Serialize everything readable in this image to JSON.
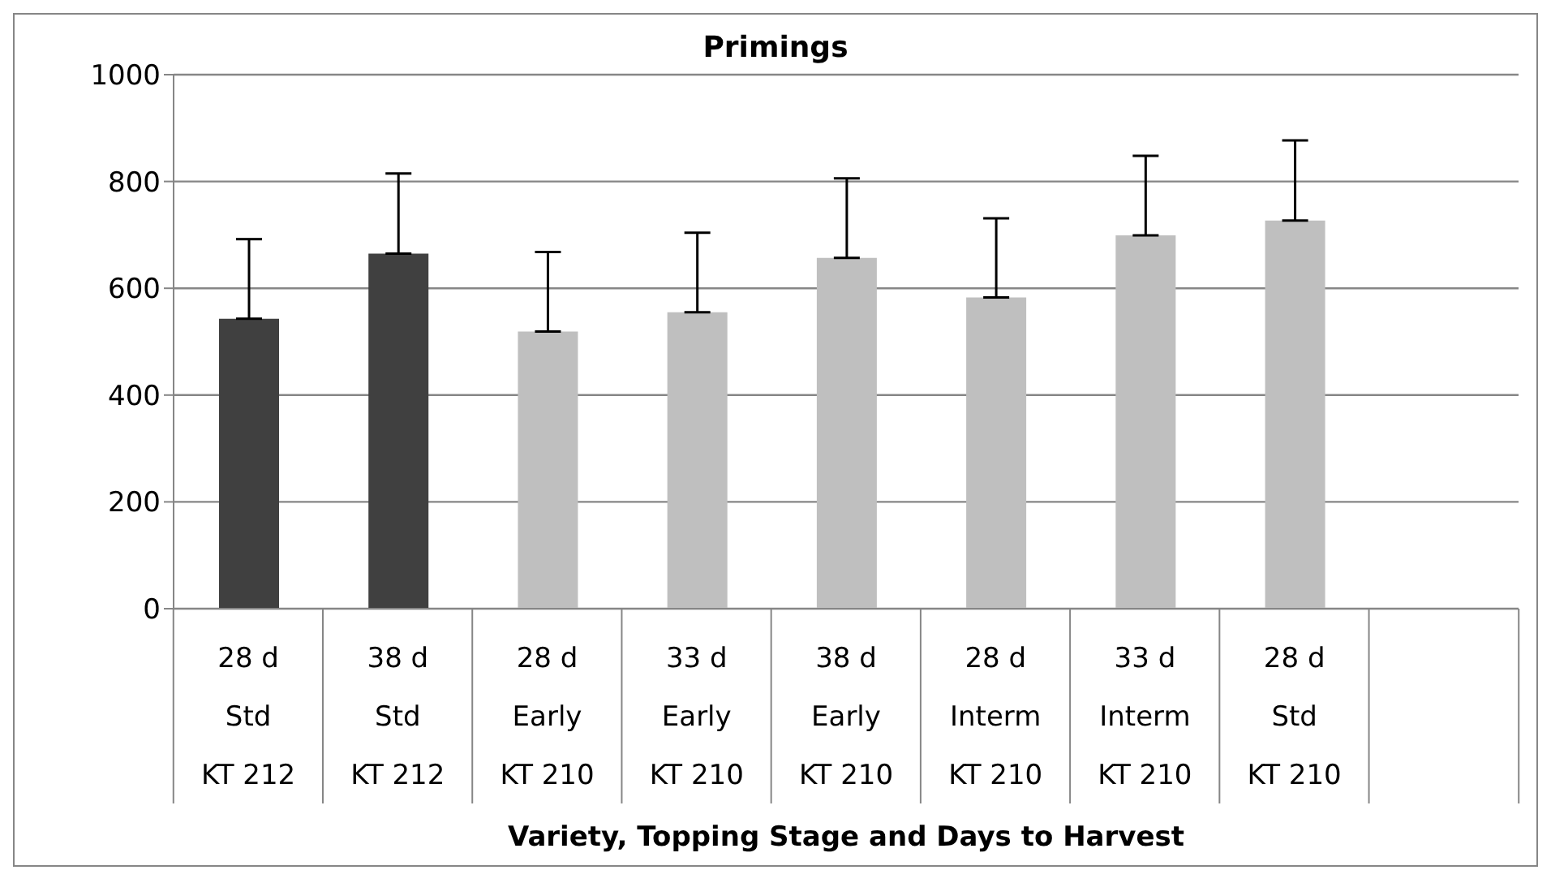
{
  "chart_data": {
    "type": "bar",
    "title": "Primings",
    "xlabel": "Variety, Topping Stage and Days to Harvest",
    "categories": [
      "28 d\nStd\nKT 212",
      "38 d\nStd\nKT 212",
      "28 d\nEarly\nKT 210",
      "33 d\nEarly\nKT 210",
      "38 d\nEarly\nKT 210",
      "28 d\nInterm\nKT 210",
      "33 d\nInterm\nKT 210",
      "28 d\nStd\nKT 210",
      null
    ],
    "values": [
      543,
      665,
      519,
      555,
      657,
      583,
      699,
      727,
      null
    ],
    "colors": [
      "#404040",
      "#404040",
      "#bfbfbf",
      "#bfbfbf",
      "#bfbfbf",
      "#bfbfbf",
      "#bfbfbf",
      "#bfbfbf",
      "#bfbfbf"
    ],
    "errors": [
      [
        543,
        692
      ],
      [
        665,
        815
      ],
      [
        519,
        668
      ],
      [
        555,
        704
      ],
      [
        657,
        806
      ],
      [
        583,
        731
      ],
      [
        699,
        848
      ],
      [
        727,
        877
      ],
      null
    ],
    "ylim": [
      0,
      1000
    ],
    "yticks": [
      0,
      200,
      400,
      600,
      800,
      1000
    ],
    "grid": "y",
    "legend": false
  }
}
